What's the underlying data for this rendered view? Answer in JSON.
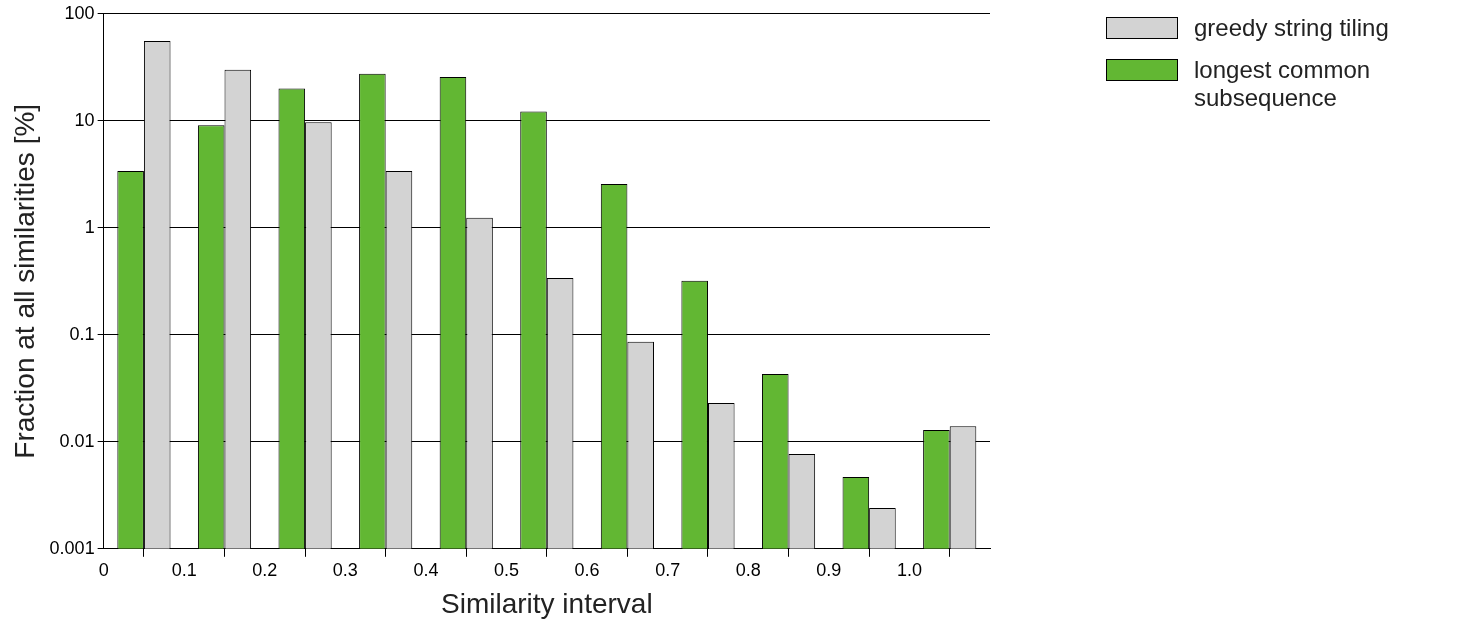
{
  "chart_data": {
    "type": "bar",
    "xlabel": "Similarity interval",
    "ylabel": "Fraction at all similarities [%]",
    "x": [
      0.05,
      0.15,
      0.25,
      0.35,
      0.45,
      0.55,
      0.65,
      0.75,
      0.85,
      0.95,
      1.05
    ],
    "xlim": [
      0,
      1.1
    ],
    "xticks": [
      0,
      0.1,
      0.2,
      0.3,
      0.4,
      0.5,
      0.6,
      0.7,
      0.8,
      0.9,
      {
        "value": 1,
        "label": "1.0"
      }
    ],
    "ylim": [
      0.001,
      100
    ],
    "yticks": [
      0.001,
      0.01,
      0.1,
      1,
      10,
      100
    ],
    "log": true,
    "grid": "y",
    "legend": "top right",
    "series": [
      {
        "name": "longest common subsequence",
        "color": "#62b733",
        "values": [
          3.4,
          9.1,
          20,
          27.5,
          25.7,
          12.2,
          2.56,
          0.32,
          0.043,
          0.0047,
          0.0129
        ]
      },
      {
        "name": "greedy string tiling",
        "color": "#d3d3d3",
        "values": [
          55.6,
          30,
          9.7,
          3.4,
          1.24,
          0.34,
          0.086,
          0.023,
          0.0077,
          0.0024,
          0.014
        ]
      }
    ]
  }
}
